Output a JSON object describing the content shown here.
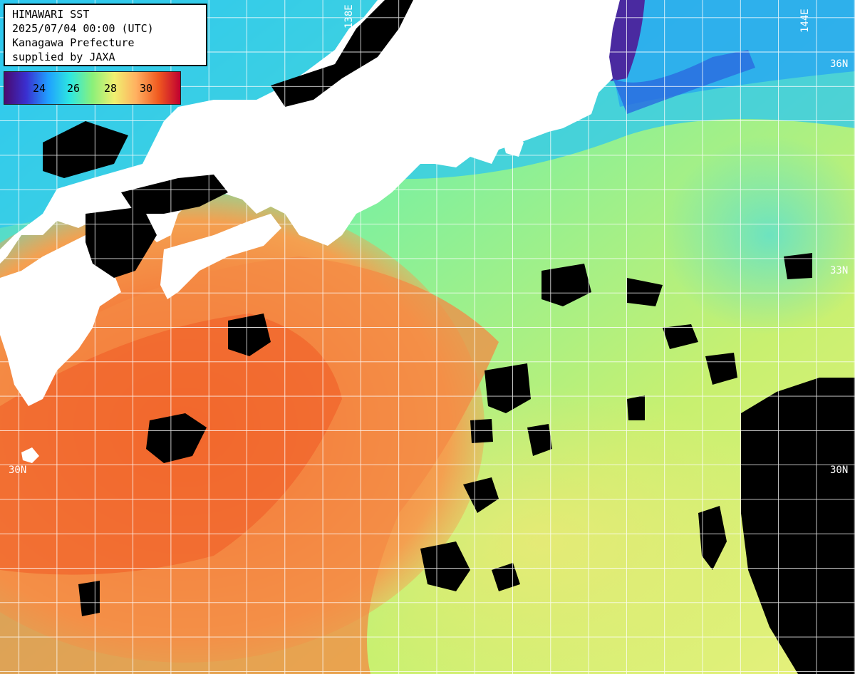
{
  "title_block": {
    "line1": "HIMAWARI SST",
    "line2": "2025/07/04 00:00 (UTC)",
    "line3": "Kanagawa Prefecture",
    "line4": "supplied by JAXA"
  },
  "legend": {
    "ticks": [
      "24",
      "26",
      "28",
      "30"
    ],
    "colors": [
      "#4a0a6e",
      "#3a2fd0",
      "#1fa0ff",
      "#2ee8e0",
      "#8af07a",
      "#f0f070",
      "#ffb060",
      "#f05a20",
      "#c00030"
    ]
  },
  "grid_labels": {
    "lat_36": "36N",
    "lat_33": "33N",
    "lat_30_left": "30N",
    "lat_30_right": "30N",
    "lon_138": "138E",
    "lon_144": "144E"
  },
  "map_colors": {
    "land": "#ffffff",
    "cloud": "#000000",
    "grid": "#ffffff"
  }
}
